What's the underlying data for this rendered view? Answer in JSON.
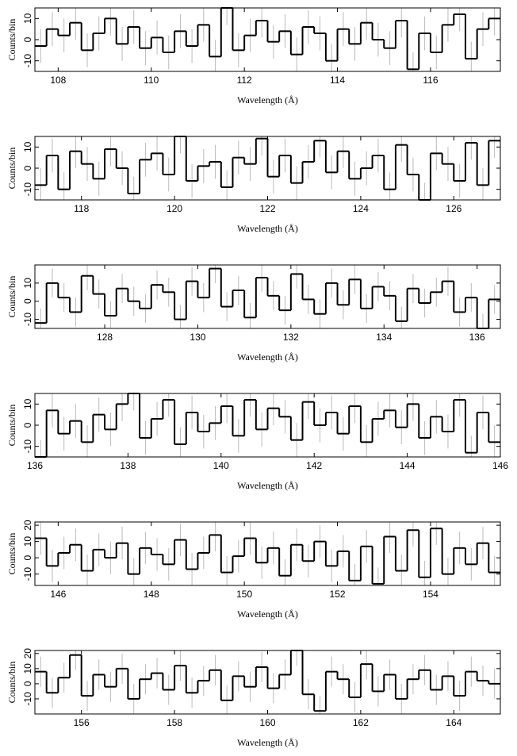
{
  "chart_data": [
    {
      "type": "histogram",
      "xlabel": "Wavelength (Å)",
      "ylabel": "Counts/bin",
      "color": "#000000",
      "error_color": "#bbbbbb",
      "error": 8,
      "xlim": [
        107.5,
        117.5
      ],
      "ylim": [
        -15,
        15
      ],
      "xticks": [
        108,
        110,
        112,
        114,
        116
      ],
      "yticks": [
        -10,
        0,
        10
      ],
      "bins": [
        107.5,
        107.75,
        108,
        108.25,
        108.5,
        108.75,
        109,
        109.25,
        109.5,
        109.75,
        110,
        110.25,
        110.5,
        110.75,
        111,
        111.25,
        111.5,
        111.75,
        112,
        112.25,
        112.5,
        112.75,
        113,
        113.25,
        113.5,
        113.75,
        114,
        114.25,
        114.5,
        114.75,
        115,
        115.25,
        115.5,
        115.75,
        116,
        116.25,
        116.5,
        116.75,
        117,
        117.25,
        117.5
      ],
      "values": [
        -3,
        5,
        2,
        8,
        -5,
        3,
        10,
        -2,
        6,
        -4,
        1,
        -6,
        4,
        -3,
        7,
        -8,
        15,
        -5,
        2,
        9,
        -1,
        4,
        -7,
        6,
        3,
        -10,
        5,
        -2,
        8,
        0,
        -4,
        9,
        -14,
        3,
        -6,
        7,
        12,
        -9,
        5,
        10
      ]
    },
    {
      "type": "histogram",
      "xlabel": "Wavelength (Å)",
      "ylabel": "Counts/bin",
      "color": "#000000",
      "error_color": "#bbbbbb",
      "error": 8,
      "xlim": [
        117,
        127
      ],
      "ylim": [
        -15,
        15
      ],
      "xticks": [
        118,
        120,
        122,
        124,
        126
      ],
      "yticks": [
        -10,
        0,
        10
      ],
      "bins": [
        117,
        117.25,
        117.5,
        117.75,
        118,
        118.25,
        118.5,
        118.75,
        119,
        119.25,
        119.5,
        119.75,
        120,
        120.25,
        120.5,
        120.75,
        121,
        121.25,
        121.5,
        121.75,
        122,
        122.25,
        122.5,
        122.75,
        123,
        123.25,
        123.5,
        123.75,
        124,
        124.25,
        124.5,
        124.75,
        125,
        125.25,
        125.5,
        125.75,
        126,
        126.25,
        126.5,
        126.75,
        127
      ],
      "values": [
        -8,
        6,
        -10,
        8,
        2,
        -5,
        9,
        0,
        -12,
        4,
        7,
        -3,
        15,
        -6,
        1,
        3,
        -9,
        5,
        2,
        14,
        -4,
        6,
        -7,
        3,
        13,
        -2,
        8,
        -5,
        0,
        6,
        -10,
        11,
        -3,
        -15,
        7,
        2,
        -6,
        12,
        -8,
        13
      ]
    },
    {
      "type": "histogram",
      "xlabel": "Wavelength (Å)",
      "ylabel": "Counts/bin",
      "color": "#000000",
      "error_color": "#bbbbbb",
      "error": 8,
      "xlim": [
        126.5,
        136.5
      ],
      "ylim": [
        -15,
        20
      ],
      "xticks": [
        128,
        130,
        132,
        134,
        136
      ],
      "yticks": [
        -10,
        0,
        10
      ],
      "bins": [
        126.5,
        126.75,
        127,
        127.25,
        127.5,
        127.75,
        128,
        128.25,
        128.5,
        128.75,
        129,
        129.25,
        129.5,
        129.75,
        130,
        130.25,
        130.5,
        130.75,
        131,
        131.25,
        131.5,
        131.75,
        132,
        132.25,
        132.5,
        132.75,
        133,
        133.25,
        133.5,
        133.75,
        134,
        134.25,
        134.5,
        134.75,
        135,
        135.25,
        135.5,
        135.75,
        136,
        136.25,
        136.5
      ],
      "values": [
        -12,
        10,
        2,
        -6,
        14,
        4,
        -8,
        7,
        0,
        -4,
        9,
        5,
        -10,
        11,
        2,
        18,
        -3,
        6,
        -9,
        13,
        3,
        -5,
        15,
        1,
        -7,
        10,
        -2,
        12,
        -4,
        8,
        3,
        -11,
        7,
        -1,
        5,
        11,
        -6,
        2,
        -15,
        1
      ]
    },
    {
      "type": "histogram",
      "xlabel": "Wavelength (Å)",
      "ylabel": "Counts/bin",
      "color": "#000000",
      "error_color": "#bbbbbb",
      "error": 8,
      "xlim": [
        136,
        146
      ],
      "ylim": [
        -15,
        15
      ],
      "xticks": [
        136,
        138,
        140,
        142,
        144,
        146
      ],
      "yticks": [
        -10,
        0,
        10
      ],
      "bins": [
        136,
        136.25,
        136.5,
        136.75,
        137,
        137.25,
        137.5,
        137.75,
        138,
        138.25,
        138.5,
        138.75,
        139,
        139.25,
        139.5,
        139.75,
        140,
        140.25,
        140.5,
        140.75,
        141,
        141.25,
        141.5,
        141.75,
        142,
        142.25,
        142.5,
        142.75,
        143,
        143.25,
        143.5,
        143.75,
        144,
        144.25,
        144.5,
        144.75,
        145,
        145.25,
        145.5,
        145.75,
        146
      ],
      "values": [
        -15,
        7,
        -4,
        2,
        -8,
        5,
        -2,
        10,
        15,
        -6,
        3,
        12,
        -9,
        6,
        -3,
        1,
        9,
        -5,
        12,
        -2,
        8,
        4,
        -7,
        11,
        0,
        6,
        -4,
        9,
        -8,
        3,
        7,
        -1,
        10,
        -6,
        4,
        -3,
        12,
        -13,
        6,
        -8
      ]
    },
    {
      "type": "histogram",
      "xlabel": "Wavelength (Å)",
      "ylabel": "Counts/bin",
      "color": "#000000",
      "error_color": "#bbbbbb",
      "error": 10,
      "xlim": [
        145.5,
        155.5
      ],
      "ylim": [
        -17,
        22
      ],
      "xticks": [
        146,
        148,
        150,
        152,
        154
      ],
      "yticks": [
        -10,
        0,
        10,
        20
      ],
      "bins": [
        145.5,
        145.75,
        146,
        146.25,
        146.5,
        146.75,
        147,
        147.25,
        147.5,
        147.75,
        148,
        148.25,
        148.5,
        148.75,
        149,
        149.25,
        149.5,
        149.75,
        150,
        150.25,
        150.5,
        150.75,
        151,
        151.25,
        151.5,
        151.75,
        152,
        152.25,
        152.5,
        152.75,
        153,
        153.25,
        153.5,
        153.75,
        154,
        154.25,
        154.5,
        154.75,
        155,
        155.25,
        155.5
      ],
      "values": [
        12,
        -5,
        3,
        8,
        -8,
        5,
        0,
        9,
        -10,
        6,
        2,
        -4,
        11,
        -7,
        3,
        14,
        -9,
        1,
        12,
        -3,
        6,
        -11,
        8,
        -2,
        10,
        -5,
        4,
        -14,
        7,
        -16,
        13,
        -8,
        17,
        -12,
        18,
        -10,
        6,
        -4,
        9,
        -9
      ]
    },
    {
      "type": "histogram",
      "xlabel": "Wavelength (Å)",
      "ylabel": "Counts/bin",
      "color": "#000000",
      "error_color": "#bbbbbb",
      "error": 10,
      "xlim": [
        155,
        165
      ],
      "ylim": [
        -20,
        22
      ],
      "xticks": [
        156,
        158,
        160,
        162,
        164
      ],
      "yticks": [
        -10,
        0,
        10,
        20
      ],
      "bins": [
        155,
        155.25,
        155.5,
        155.75,
        156,
        156.25,
        156.5,
        156.75,
        157,
        157.25,
        157.5,
        157.75,
        158,
        158.25,
        158.5,
        158.75,
        159,
        159.25,
        159.5,
        159.75,
        160,
        160.25,
        160.5,
        160.75,
        161,
        161.25,
        161.5,
        161.75,
        162,
        162.25,
        162.5,
        162.75,
        163,
        163.25,
        163.5,
        163.75,
        164,
        164.25,
        164.5,
        164.75,
        165
      ],
      "values": [
        8,
        -6,
        4,
        19,
        -8,
        6,
        -2,
        10,
        -10,
        3,
        7,
        -4,
        12,
        -6,
        2,
        9,
        -11,
        5,
        -2,
        11,
        -3,
        6,
        22,
        -7,
        -18,
        8,
        3,
        -9,
        13,
        -5,
        6,
        -10,
        3,
        9,
        -4,
        5,
        -8,
        8,
        2,
        0
      ]
    }
  ]
}
